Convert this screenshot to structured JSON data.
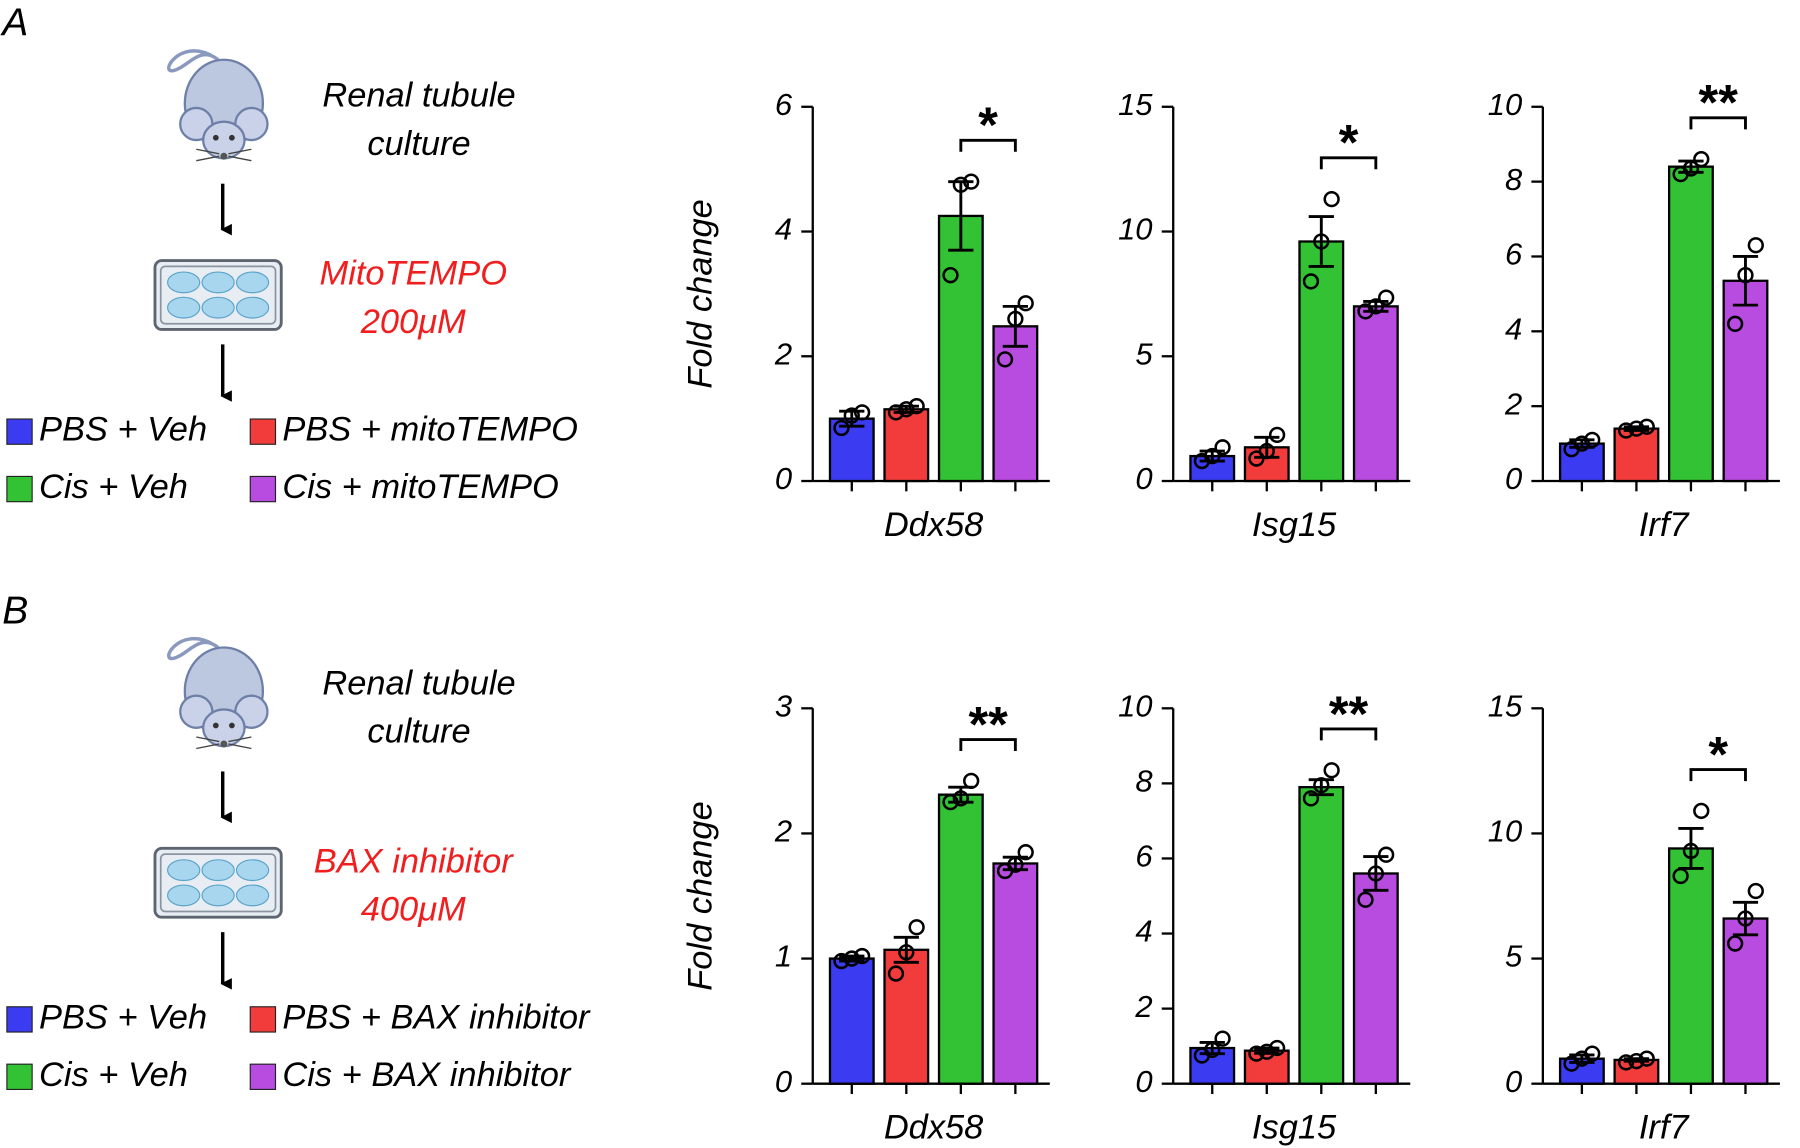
{
  "panels": [
    {
      "label": "A",
      "schematic": {
        "source": [
          "Renal  tubule",
          "culture"
        ],
        "treatment": [
          "MitoTEMPO",
          "200μM"
        ]
      },
      "legend": [
        {
          "name": "PBS + Veh",
          "color": "#3b3cf2"
        },
        {
          "name": "PBS + mitoTEMPO",
          "color": "#f23c3c"
        },
        {
          "name": "Cis + Veh",
          "color": "#33c233"
        },
        {
          "name": "Cis + mitoTEMPO",
          "color": "#b84be0"
        }
      ]
    },
    {
      "label": "B",
      "schematic": {
        "source": [
          "Renal  tubule",
          "culture"
        ],
        "treatment": [
          "BAX inhibitor",
          "400μM"
        ]
      },
      "legend": [
        {
          "name": "PBS + Veh",
          "color": "#3b3cf2"
        },
        {
          "name": "PBS + BAX inhibitor",
          "color": "#f23c3c"
        },
        {
          "name": "Cis + Veh",
          "color": "#33c233"
        },
        {
          "name": "Cis + BAX inhibitor",
          "color": "#b84be0"
        }
      ]
    }
  ],
  "chart_data": [
    {
      "type": "bar",
      "ylabel": "Fold change",
      "xlabel": "Ddx58",
      "ylim": [
        0,
        6
      ],
      "yticks": [
        0,
        2,
        4,
        6
      ],
      "values": [
        1.0,
        1.15,
        4.25,
        2.48
      ],
      "errors": [
        0.12,
        0.05,
        0.55,
        0.32
      ],
      "points": [
        [
          0.85,
          1.05,
          1.1
        ],
        [
          1.1,
          1.15,
          1.2
        ],
        [
          3.3,
          4.75,
          4.8
        ],
        [
          1.95,
          2.6,
          2.85
        ]
      ],
      "annotation": "*"
    },
    {
      "type": "bar",
      "xlabel": "Isg15",
      "ylim": [
        0,
        15
      ],
      "yticks": [
        0,
        5,
        10,
        15
      ],
      "values": [
        1.0,
        1.35,
        9.6,
        7.0
      ],
      "errors": [
        0.2,
        0.4,
        1.0,
        0.2
      ],
      "points": [
        [
          0.8,
          1.0,
          1.35
        ],
        [
          0.9,
          1.2,
          1.85
        ],
        [
          8.0,
          9.6,
          11.3
        ],
        [
          6.8,
          7.0,
          7.35
        ]
      ],
      "annotation": "*"
    },
    {
      "type": "bar",
      "xlabel": "Irf7",
      "ylim": [
        0,
        10
      ],
      "yticks": [
        0,
        2,
        4,
        6,
        8,
        10
      ],
      "values": [
        1.0,
        1.4,
        8.4,
        5.35
      ],
      "errors": [
        0.1,
        0.05,
        0.15,
        0.65
      ],
      "points": [
        [
          0.85,
          1.0,
          1.1
        ],
        [
          1.35,
          1.4,
          1.45
        ],
        [
          8.2,
          8.35,
          8.6
        ],
        [
          4.2,
          5.5,
          6.3
        ]
      ],
      "annotation": "**"
    },
    {
      "type": "bar",
      "ylabel": "Fold change",
      "xlabel": "Ddx58",
      "ylim": [
        0,
        3
      ],
      "yticks": [
        0,
        1,
        2,
        3
      ],
      "values": [
        1.0,
        1.07,
        2.31,
        1.76
      ],
      "errors": [
        0.02,
        0.1,
        0.06,
        0.05
      ],
      "points": [
        [
          0.98,
          1.0,
          1.02
        ],
        [
          0.88,
          1.05,
          1.25
        ],
        [
          2.25,
          2.28,
          2.42
        ],
        [
          1.7,
          1.75,
          1.85
        ]
      ],
      "annotation": "**"
    },
    {
      "type": "bar",
      "xlabel": "Isg15",
      "ylim": [
        0,
        10
      ],
      "yticks": [
        0,
        2,
        4,
        6,
        8,
        10
      ],
      "values": [
        0.95,
        0.88,
        7.9,
        5.6
      ],
      "errors": [
        0.15,
        0.07,
        0.2,
        0.45
      ],
      "points": [
        [
          0.75,
          0.9,
          1.2
        ],
        [
          0.8,
          0.85,
          0.95
        ],
        [
          7.6,
          7.95,
          8.35
        ],
        [
          4.9,
          5.6,
          6.1
        ]
      ],
      "annotation": "**"
    },
    {
      "type": "bar",
      "xlabel": "Irf7",
      "ylim": [
        0,
        15
      ],
      "yticks": [
        0,
        5,
        10,
        15
      ],
      "values": [
        1.0,
        0.95,
        9.4,
        6.6
      ],
      "errors": [
        0.15,
        0.05,
        0.8,
        0.65
      ],
      "points": [
        [
          0.8,
          1.0,
          1.2
        ],
        [
          0.85,
          0.9,
          1.0
        ],
        [
          8.3,
          9.3,
          10.9
        ],
        [
          5.6,
          6.6,
          7.7
        ]
      ],
      "annotation": "*"
    }
  ]
}
